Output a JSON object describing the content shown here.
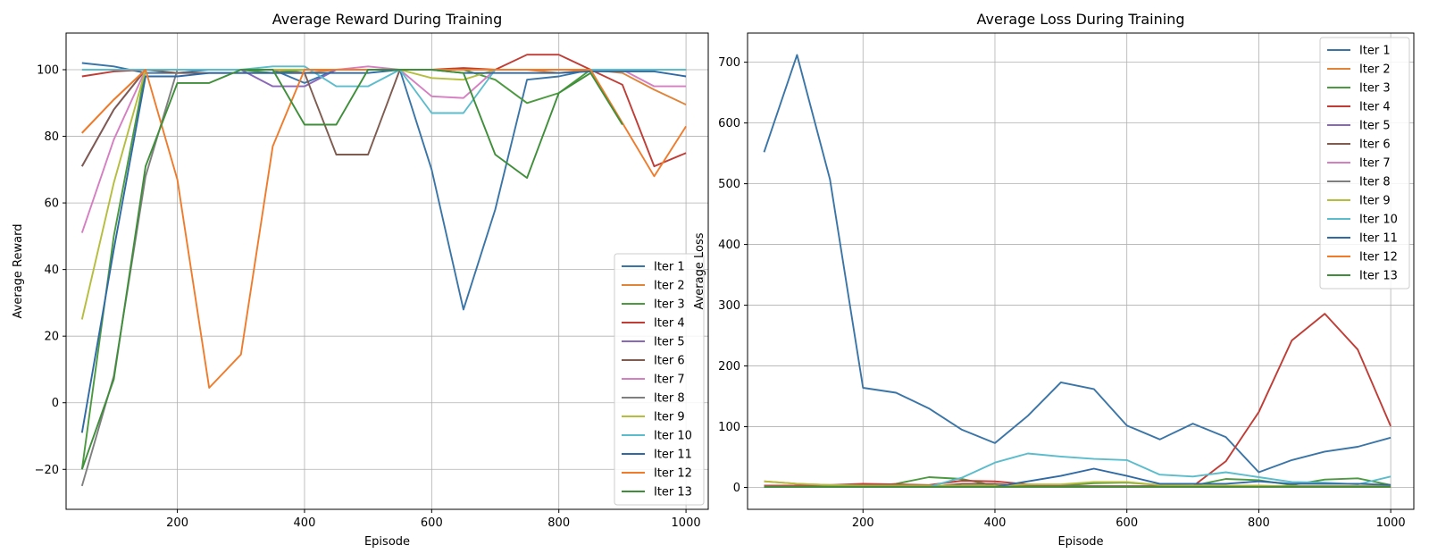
{
  "colors": [
    "#3a75a8",
    "#e0843a",
    "#4c9a3f",
    "#c03d36",
    "#8a67b8",
    "#7f5b50",
    "#d57fc2",
    "#7f7f7f",
    "#b5bd3d",
    "#5bbccc",
    "#2f6aa6",
    "#ef7b2b",
    "#3f8f3a"
  ],
  "chart_data": [
    {
      "type": "line",
      "title": "Average Reward During Training",
      "xlabel": "Episode",
      "ylabel": "Average Reward",
      "xlim": [
        25,
        1035
      ],
      "ylim": [
        -32,
        111
      ],
      "xticks": [
        200,
        400,
        600,
        800,
        1000
      ],
      "yticks": [
        -20,
        0,
        20,
        40,
        60,
        80,
        100
      ],
      "grid": true,
      "legend_position": "lower right",
      "x": [
        50,
        100,
        150,
        200,
        250,
        300,
        350,
        400,
        450,
        500,
        550,
        600,
        650,
        700,
        750,
        800,
        850,
        900,
        950,
        1000
      ],
      "series": [
        {
          "name": "Iter 1",
          "values": [
            102,
            101,
            99,
            99,
            100,
            100,
            100,
            96,
            100,
            100,
            100,
            70,
            28,
            58,
            97,
            98,
            100,
            100,
            100,
            100
          ]
        },
        {
          "name": "Iter 2",
          "values": [
            81,
            91,
            100,
            100,
            100,
            100,
            100,
            99,
            100,
            100,
            100,
            100,
            100,
            100,
            100,
            99,
            100,
            99,
            94,
            89.5
          ]
        },
        {
          "name": "Iter 3",
          "values": [
            -20,
            50,
            100,
            100,
            100,
            100,
            99,
            100,
            100,
            100,
            100,
            100,
            100,
            97,
            90,
            93,
            100,
            100,
            100,
            100
          ]
        },
        {
          "name": "Iter 4",
          "values": [
            98,
            99.5,
            100,
            100,
            100,
            100,
            100,
            100,
            100,
            100,
            100,
            100,
            100.5,
            100,
            104.5,
            104.5,
            100,
            95.5,
            71,
            75
          ]
        },
        {
          "name": "Iter 5",
          "values": [
            71,
            88,
            100,
            100,
            100,
            100,
            95,
            95,
            100,
            100,
            100,
            100,
            100,
            100,
            100,
            100,
            100,
            100,
            100,
            100
          ]
        },
        {
          "name": "Iter 6",
          "values": [
            71,
            88,
            100,
            99,
            99,
            99,
            99,
            99,
            74.5,
            74.5,
            100,
            100,
            100,
            100,
            100,
            100,
            100,
            100,
            100,
            100
          ]
        },
        {
          "name": "Iter 7",
          "values": [
            51,
            79,
            100,
            100,
            100,
            100,
            100,
            100,
            100,
            101,
            100,
            92,
            91.5,
            100,
            100,
            100,
            100,
            100,
            95,
            95
          ]
        },
        {
          "name": "Iter 8",
          "values": [
            -25,
            8,
            68,
            100,
            100,
            100,
            100,
            100,
            100,
            100,
            100,
            100,
            100,
            100,
            100,
            100,
            100,
            100,
            100,
            100
          ]
        },
        {
          "name": "Iter 9",
          "values": [
            25,
            66,
            100,
            100,
            100,
            100,
            100,
            100,
            100,
            100,
            100,
            97.5,
            97,
            100,
            100,
            100,
            100,
            100,
            100,
            100
          ]
        },
        {
          "name": "Iter 10",
          "values": [
            100,
            100,
            100,
            100,
            100,
            100,
            101,
            101,
            95,
            95,
            100,
            87,
            87,
            100,
            100,
            100,
            100,
            100,
            100,
            100
          ]
        },
        {
          "name": "Iter 11",
          "values": [
            -9,
            46,
            98,
            98,
            99,
            99,
            99,
            99,
            99,
            99,
            100,
            100,
            99,
            99,
            99,
            99,
            99.5,
            99.5,
            99.5,
            98
          ]
        },
        {
          "name": "Iter 12",
          "values": [
            81,
            91,
            100,
            67,
            4.5,
            14.5,
            77,
            100,
            100,
            100,
            100,
            100,
            100,
            100,
            100,
            100,
            100,
            84,
            68,
            83
          ]
        },
        {
          "name": "Iter 13",
          "values": [
            -20,
            7,
            71,
            96,
            96,
            100,
            100,
            83.5,
            83.5,
            100,
            100,
            100,
            99,
            74.5,
            67.5,
            93,
            99,
            83.5,
            null,
            null
          ]
        }
      ]
    },
    {
      "type": "line",
      "title": "Average Loss During Training",
      "xlabel": "Episode",
      "ylabel": "Average Loss",
      "xlim": [
        25,
        1035
      ],
      "ylim": [
        -36,
        748
      ],
      "xticks": [
        200,
        400,
        600,
        800,
        1000
      ],
      "yticks": [
        0,
        100,
        200,
        300,
        400,
        500,
        600,
        700
      ],
      "grid": true,
      "legend_position": "upper right",
      "x": [
        50,
        100,
        150,
        200,
        250,
        300,
        350,
        400,
        450,
        500,
        550,
        600,
        650,
        700,
        750,
        800,
        850,
        900,
        950,
        1000
      ],
      "series": [
        {
          "name": "Iter 1",
          "values": [
            552,
            712,
            507,
            164,
            156,
            130,
            95,
            73,
            118,
            173,
            162,
            102,
            79,
            105,
            83,
            25,
            45,
            59,
            67,
            82
          ]
        },
        {
          "name": "Iter 2",
          "values": [
            10,
            6,
            4,
            3,
            3,
            3,
            3,
            2,
            2,
            2,
            2,
            2,
            2,
            2,
            2,
            2,
            2,
            2,
            2,
            2
          ]
        },
        {
          "name": "Iter 3",
          "values": [
            1,
            1,
            1,
            1,
            6,
            17,
            14,
            3,
            3,
            3,
            7,
            8,
            4,
            3,
            14,
            12,
            4,
            13,
            15,
            4
          ]
        },
        {
          "name": "Iter 4",
          "values": [
            3,
            3,
            4,
            6,
            5,
            4,
            11,
            10,
            5,
            2,
            2,
            2,
            2,
            2,
            43,
            124,
            242,
            286,
            227,
            101
          ]
        },
        {
          "name": "Iter 5",
          "values": [
            1,
            1,
            1,
            1,
            1,
            1,
            2,
            2,
            2,
            2,
            2,
            2,
            2,
            2,
            2,
            2,
            2,
            2,
            2,
            2
          ]
        },
        {
          "name": "Iter 6",
          "values": [
            1,
            1,
            1,
            1,
            1,
            1,
            6,
            6,
            2,
            2,
            2,
            2,
            2,
            2,
            2,
            2,
            2,
            2,
            2,
            2
          ]
        },
        {
          "name": "Iter 7",
          "values": [
            1,
            1,
            1,
            1,
            1,
            1,
            1,
            1,
            1,
            1,
            1,
            1,
            1,
            1,
            1,
            1,
            1,
            1,
            1,
            1
          ]
        },
        {
          "name": "Iter 8",
          "values": [
            1,
            1,
            1,
            1,
            1,
            1,
            1,
            1,
            1,
            1,
            1,
            1,
            1,
            1,
            1,
            1,
            1,
            1,
            1,
            1
          ]
        },
        {
          "name": "Iter 9",
          "values": [
            10,
            6,
            4,
            3,
            3,
            3,
            3,
            3,
            5,
            5,
            9,
            9,
            4,
            3,
            3,
            3,
            2,
            2,
            2,
            2
          ]
        },
        {
          "name": "Iter 10",
          "values": [
            1,
            1,
            1,
            1,
            1,
            1,
            16,
            41,
            56,
            51,
            47,
            45,
            21,
            18,
            25,
            17,
            9,
            8,
            5,
            18
          ]
        },
        {
          "name": "Iter 11",
          "values": [
            1,
            1,
            1,
            1,
            1,
            1,
            1,
            1,
            10,
            19,
            31,
            19,
            6,
            6,
            6,
            10,
            6,
            6,
            6,
            4
          ]
        },
        {
          "name": "Iter 12",
          "values": [
            1,
            1,
            1,
            1,
            1,
            1,
            1,
            1,
            1,
            1,
            1,
            1,
            1,
            1,
            1,
            1,
            1,
            1,
            1,
            1
          ]
        },
        {
          "name": "Iter 13",
          "values": [
            1,
            1,
            1,
            1,
            1,
            1,
            1,
            1,
            1,
            1,
            1,
            1,
            1,
            1,
            1,
            1,
            1,
            1,
            1,
            1
          ]
        }
      ]
    }
  ]
}
